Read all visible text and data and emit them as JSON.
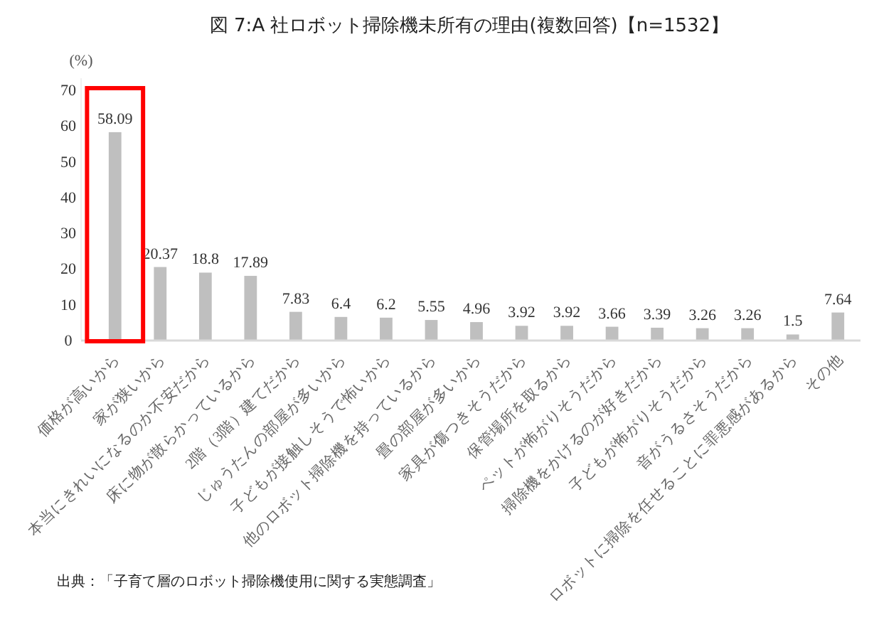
{
  "chart_data": {
    "type": "bar",
    "title": "図 7:A 社ロボット掃除機未所有の理由(複数回答)【n=1532】",
    "ylabel": "(%)",
    "categories": [
      "価格が高いから",
      "家が狭いから",
      "本当にきれいになるのか不安だから",
      "床に物が散らかっているから",
      "2階（3階）建てだから",
      "じゅうたんの部屋が多いから",
      "子どもが接触しそうで怖いから",
      "他のロボット掃除機を持っているから",
      "畳の部屋が多いから",
      "家具が傷つきそうだから",
      "保管場所を取るから",
      "ペットが怖がりそうだから",
      "掃除機をかけるのが好きだから",
      "子どもが怖がりそうだから",
      "音がうるさそうだから",
      "ロボットに掃除を任せることに罪悪感があるから",
      "その他"
    ],
    "values": [
      58.09,
      20.37,
      18.8,
      17.89,
      7.83,
      6.4,
      6.2,
      5.55,
      4.96,
      3.92,
      3.92,
      3.66,
      3.39,
      3.26,
      3.26,
      1.5,
      7.64
    ],
    "color": "#bfbfbf",
    "data_labels": true,
    "ylim": [
      0,
      70
    ],
    "yticks": [
      0,
      10,
      20,
      30,
      40,
      50,
      60,
      70
    ],
    "grid": false,
    "annotations": [
      "出典：「子育て層のロボット掃除機使用に関する実態調査」"
    ]
  }
}
